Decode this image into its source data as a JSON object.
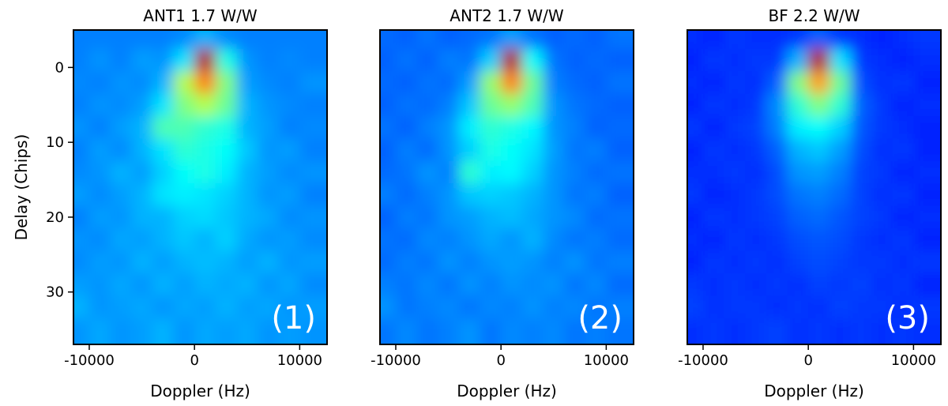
{
  "chart_data": [
    {
      "type": "heatmap",
      "title": "ANT1 1.7 W/W",
      "annotation": "(1)",
      "xlabel": "Doppler (Hz)",
      "ylabel": "Delay (Chips)",
      "xlim": [
        -11500,
        12600
      ],
      "xticks": [
        -10000,
        0,
        10000
      ],
      "ylim": [
        37,
        -5
      ],
      "yticks": [
        0,
        10,
        20,
        30
      ],
      "x": [
        -11000,
        -9000,
        -7000,
        -5000,
        -3000,
        -1000,
        1000,
        3000,
        5000,
        7000,
        9000,
        11000
      ],
      "y": [
        -4,
        -1,
        2,
        5,
        8,
        11,
        14,
        17,
        20,
        23,
        26,
        29,
        32,
        35
      ],
      "z": [
        [
          0.25,
          0.25,
          0.25,
          0.25,
          0.25,
          0.26,
          0.3,
          0.26,
          0.25,
          0.25,
          0.25,
          0.25
        ],
        [
          0.25,
          0.27,
          0.25,
          0.28,
          0.27,
          0.35,
          0.95,
          0.4,
          0.27,
          0.25,
          0.26,
          0.25
        ],
        [
          0.26,
          0.25,
          0.27,
          0.26,
          0.3,
          0.55,
          0.75,
          0.5,
          0.28,
          0.26,
          0.25,
          0.27
        ],
        [
          0.25,
          0.27,
          0.26,
          0.28,
          0.35,
          0.5,
          0.55,
          0.48,
          0.3,
          0.27,
          0.26,
          0.25
        ],
        [
          0.27,
          0.25,
          0.28,
          0.3,
          0.45,
          0.45,
          0.42,
          0.4,
          0.3,
          0.28,
          0.25,
          0.26
        ],
        [
          0.25,
          0.28,
          0.26,
          0.3,
          0.35,
          0.42,
          0.4,
          0.38,
          0.32,
          0.27,
          0.28,
          0.25
        ],
        [
          0.26,
          0.27,
          0.3,
          0.28,
          0.33,
          0.38,
          0.4,
          0.36,
          0.3,
          0.28,
          0.26,
          0.27
        ],
        [
          0.28,
          0.26,
          0.28,
          0.3,
          0.35,
          0.36,
          0.35,
          0.33,
          0.3,
          0.27,
          0.28,
          0.25
        ],
        [
          0.25,
          0.28,
          0.27,
          0.3,
          0.3,
          0.33,
          0.34,
          0.32,
          0.3,
          0.29,
          0.26,
          0.27
        ],
        [
          0.27,
          0.26,
          0.29,
          0.28,
          0.3,
          0.32,
          0.3,
          0.33,
          0.29,
          0.27,
          0.28,
          0.26
        ],
        [
          0.26,
          0.28,
          0.27,
          0.3,
          0.28,
          0.3,
          0.31,
          0.3,
          0.28,
          0.3,
          0.27,
          0.28
        ],
        [
          0.28,
          0.27,
          0.29,
          0.27,
          0.3,
          0.28,
          0.3,
          0.29,
          0.3,
          0.27,
          0.29,
          0.26
        ],
        [
          0.3,
          0.27,
          0.28,
          0.29,
          0.27,
          0.29,
          0.28,
          0.3,
          0.28,
          0.29,
          0.27,
          0.28
        ],
        [
          0.27,
          0.29,
          0.27,
          0.28,
          0.3,
          0.27,
          0.29,
          0.28,
          0.29,
          0.27,
          0.28,
          0.27
        ]
      ]
    },
    {
      "type": "heatmap",
      "title": "ANT2 1.7 W/W",
      "annotation": "(2)",
      "xlabel": "Doppler (Hz)",
      "xlim": [
        -11500,
        12600
      ],
      "xticks": [
        -10000,
        0,
        10000
      ],
      "ylim": [
        37,
        -5
      ],
      "x": [
        -11000,
        -9000,
        -7000,
        -5000,
        -3000,
        -1000,
        1000,
        3000,
        5000,
        7000,
        9000,
        11000
      ],
      "y": [
        -4,
        -1,
        2,
        5,
        8,
        11,
        14,
        17,
        20,
        23,
        26,
        29,
        32,
        35
      ],
      "z": [
        [
          0.23,
          0.22,
          0.24,
          0.22,
          0.23,
          0.24,
          0.28,
          0.24,
          0.22,
          0.23,
          0.22,
          0.24
        ],
        [
          0.22,
          0.24,
          0.22,
          0.25,
          0.24,
          0.33,
          0.95,
          0.38,
          0.24,
          0.22,
          0.23,
          0.22
        ],
        [
          0.23,
          0.22,
          0.24,
          0.23,
          0.28,
          0.52,
          0.75,
          0.48,
          0.25,
          0.23,
          0.22,
          0.24
        ],
        [
          0.22,
          0.24,
          0.23,
          0.25,
          0.32,
          0.48,
          0.52,
          0.45,
          0.27,
          0.24,
          0.23,
          0.22
        ],
        [
          0.24,
          0.22,
          0.25,
          0.27,
          0.36,
          0.42,
          0.4,
          0.37,
          0.27,
          0.25,
          0.22,
          0.23
        ],
        [
          0.22,
          0.25,
          0.23,
          0.27,
          0.33,
          0.4,
          0.38,
          0.35,
          0.28,
          0.24,
          0.25,
          0.22
        ],
        [
          0.23,
          0.24,
          0.27,
          0.25,
          0.42,
          0.36,
          0.37,
          0.33,
          0.27,
          0.25,
          0.23,
          0.24
        ],
        [
          0.25,
          0.23,
          0.25,
          0.27,
          0.32,
          0.33,
          0.32,
          0.3,
          0.27,
          0.24,
          0.25,
          0.22
        ],
        [
          0.22,
          0.25,
          0.24,
          0.27,
          0.28,
          0.3,
          0.31,
          0.29,
          0.27,
          0.26,
          0.23,
          0.24
        ],
        [
          0.24,
          0.23,
          0.26,
          0.25,
          0.27,
          0.29,
          0.27,
          0.3,
          0.26,
          0.24,
          0.25,
          0.23
        ],
        [
          0.23,
          0.25,
          0.24,
          0.27,
          0.25,
          0.27,
          0.28,
          0.27,
          0.25,
          0.27,
          0.24,
          0.25
        ],
        [
          0.25,
          0.24,
          0.26,
          0.24,
          0.27,
          0.25,
          0.27,
          0.26,
          0.27,
          0.24,
          0.26,
          0.23
        ],
        [
          0.27,
          0.24,
          0.25,
          0.26,
          0.24,
          0.26,
          0.25,
          0.27,
          0.25,
          0.26,
          0.24,
          0.25
        ],
        [
          0.24,
          0.26,
          0.24,
          0.25,
          0.27,
          0.24,
          0.26,
          0.25,
          0.26,
          0.24,
          0.25,
          0.24
        ]
      ]
    },
    {
      "type": "heatmap",
      "title": "BF 2.2 W/W",
      "annotation": "(3)",
      "xlabel": "Doppler (Hz)",
      "xlim": [
        -11500,
        12600
      ],
      "xticks": [
        -10000,
        0,
        10000
      ],
      "ylim": [
        37,
        -5
      ],
      "x": [
        -11000,
        -9000,
        -7000,
        -5000,
        -3000,
        -1000,
        1000,
        3000,
        5000,
        7000,
        9000,
        11000
      ],
      "y": [
        -4,
        -1,
        2,
        5,
        8,
        11,
        14,
        17,
        20,
        23,
        26,
        29,
        32,
        35
      ],
      "z": [
        [
          0.17,
          0.16,
          0.18,
          0.17,
          0.17,
          0.18,
          0.22,
          0.18,
          0.17,
          0.16,
          0.17,
          0.18
        ],
        [
          0.16,
          0.18,
          0.17,
          0.18,
          0.18,
          0.3,
          0.95,
          0.35,
          0.18,
          0.17,
          0.16,
          0.17
        ],
        [
          0.17,
          0.16,
          0.18,
          0.17,
          0.22,
          0.5,
          0.72,
          0.48,
          0.2,
          0.17,
          0.18,
          0.16
        ],
        [
          0.16,
          0.18,
          0.17,
          0.18,
          0.26,
          0.42,
          0.5,
          0.42,
          0.22,
          0.18,
          0.16,
          0.17
        ],
        [
          0.18,
          0.16,
          0.18,
          0.19,
          0.25,
          0.36,
          0.38,
          0.33,
          0.21,
          0.18,
          0.17,
          0.16
        ],
        [
          0.16,
          0.18,
          0.17,
          0.18,
          0.22,
          0.3,
          0.32,
          0.28,
          0.2,
          0.17,
          0.18,
          0.16
        ],
        [
          0.17,
          0.17,
          0.18,
          0.17,
          0.2,
          0.27,
          0.28,
          0.25,
          0.19,
          0.18,
          0.16,
          0.17
        ],
        [
          0.18,
          0.16,
          0.17,
          0.18,
          0.2,
          0.24,
          0.25,
          0.23,
          0.19,
          0.17,
          0.18,
          0.16
        ],
        [
          0.16,
          0.18,
          0.17,
          0.18,
          0.19,
          0.22,
          0.23,
          0.21,
          0.19,
          0.18,
          0.16,
          0.17
        ],
        [
          0.17,
          0.16,
          0.18,
          0.17,
          0.18,
          0.2,
          0.21,
          0.2,
          0.18,
          0.17,
          0.18,
          0.16
        ],
        [
          0.16,
          0.18,
          0.17,
          0.18,
          0.17,
          0.19,
          0.2,
          0.19,
          0.18,
          0.18,
          0.17,
          0.18
        ],
        [
          0.18,
          0.17,
          0.18,
          0.17,
          0.18,
          0.17,
          0.19,
          0.18,
          0.19,
          0.17,
          0.18,
          0.16
        ],
        [
          0.19,
          0.17,
          0.18,
          0.18,
          0.17,
          0.18,
          0.17,
          0.19,
          0.18,
          0.18,
          0.17,
          0.18
        ],
        [
          0.17,
          0.18,
          0.17,
          0.18,
          0.19,
          0.17,
          0.18,
          0.17,
          0.18,
          0.17,
          0.18,
          0.17
        ]
      ]
    }
  ]
}
